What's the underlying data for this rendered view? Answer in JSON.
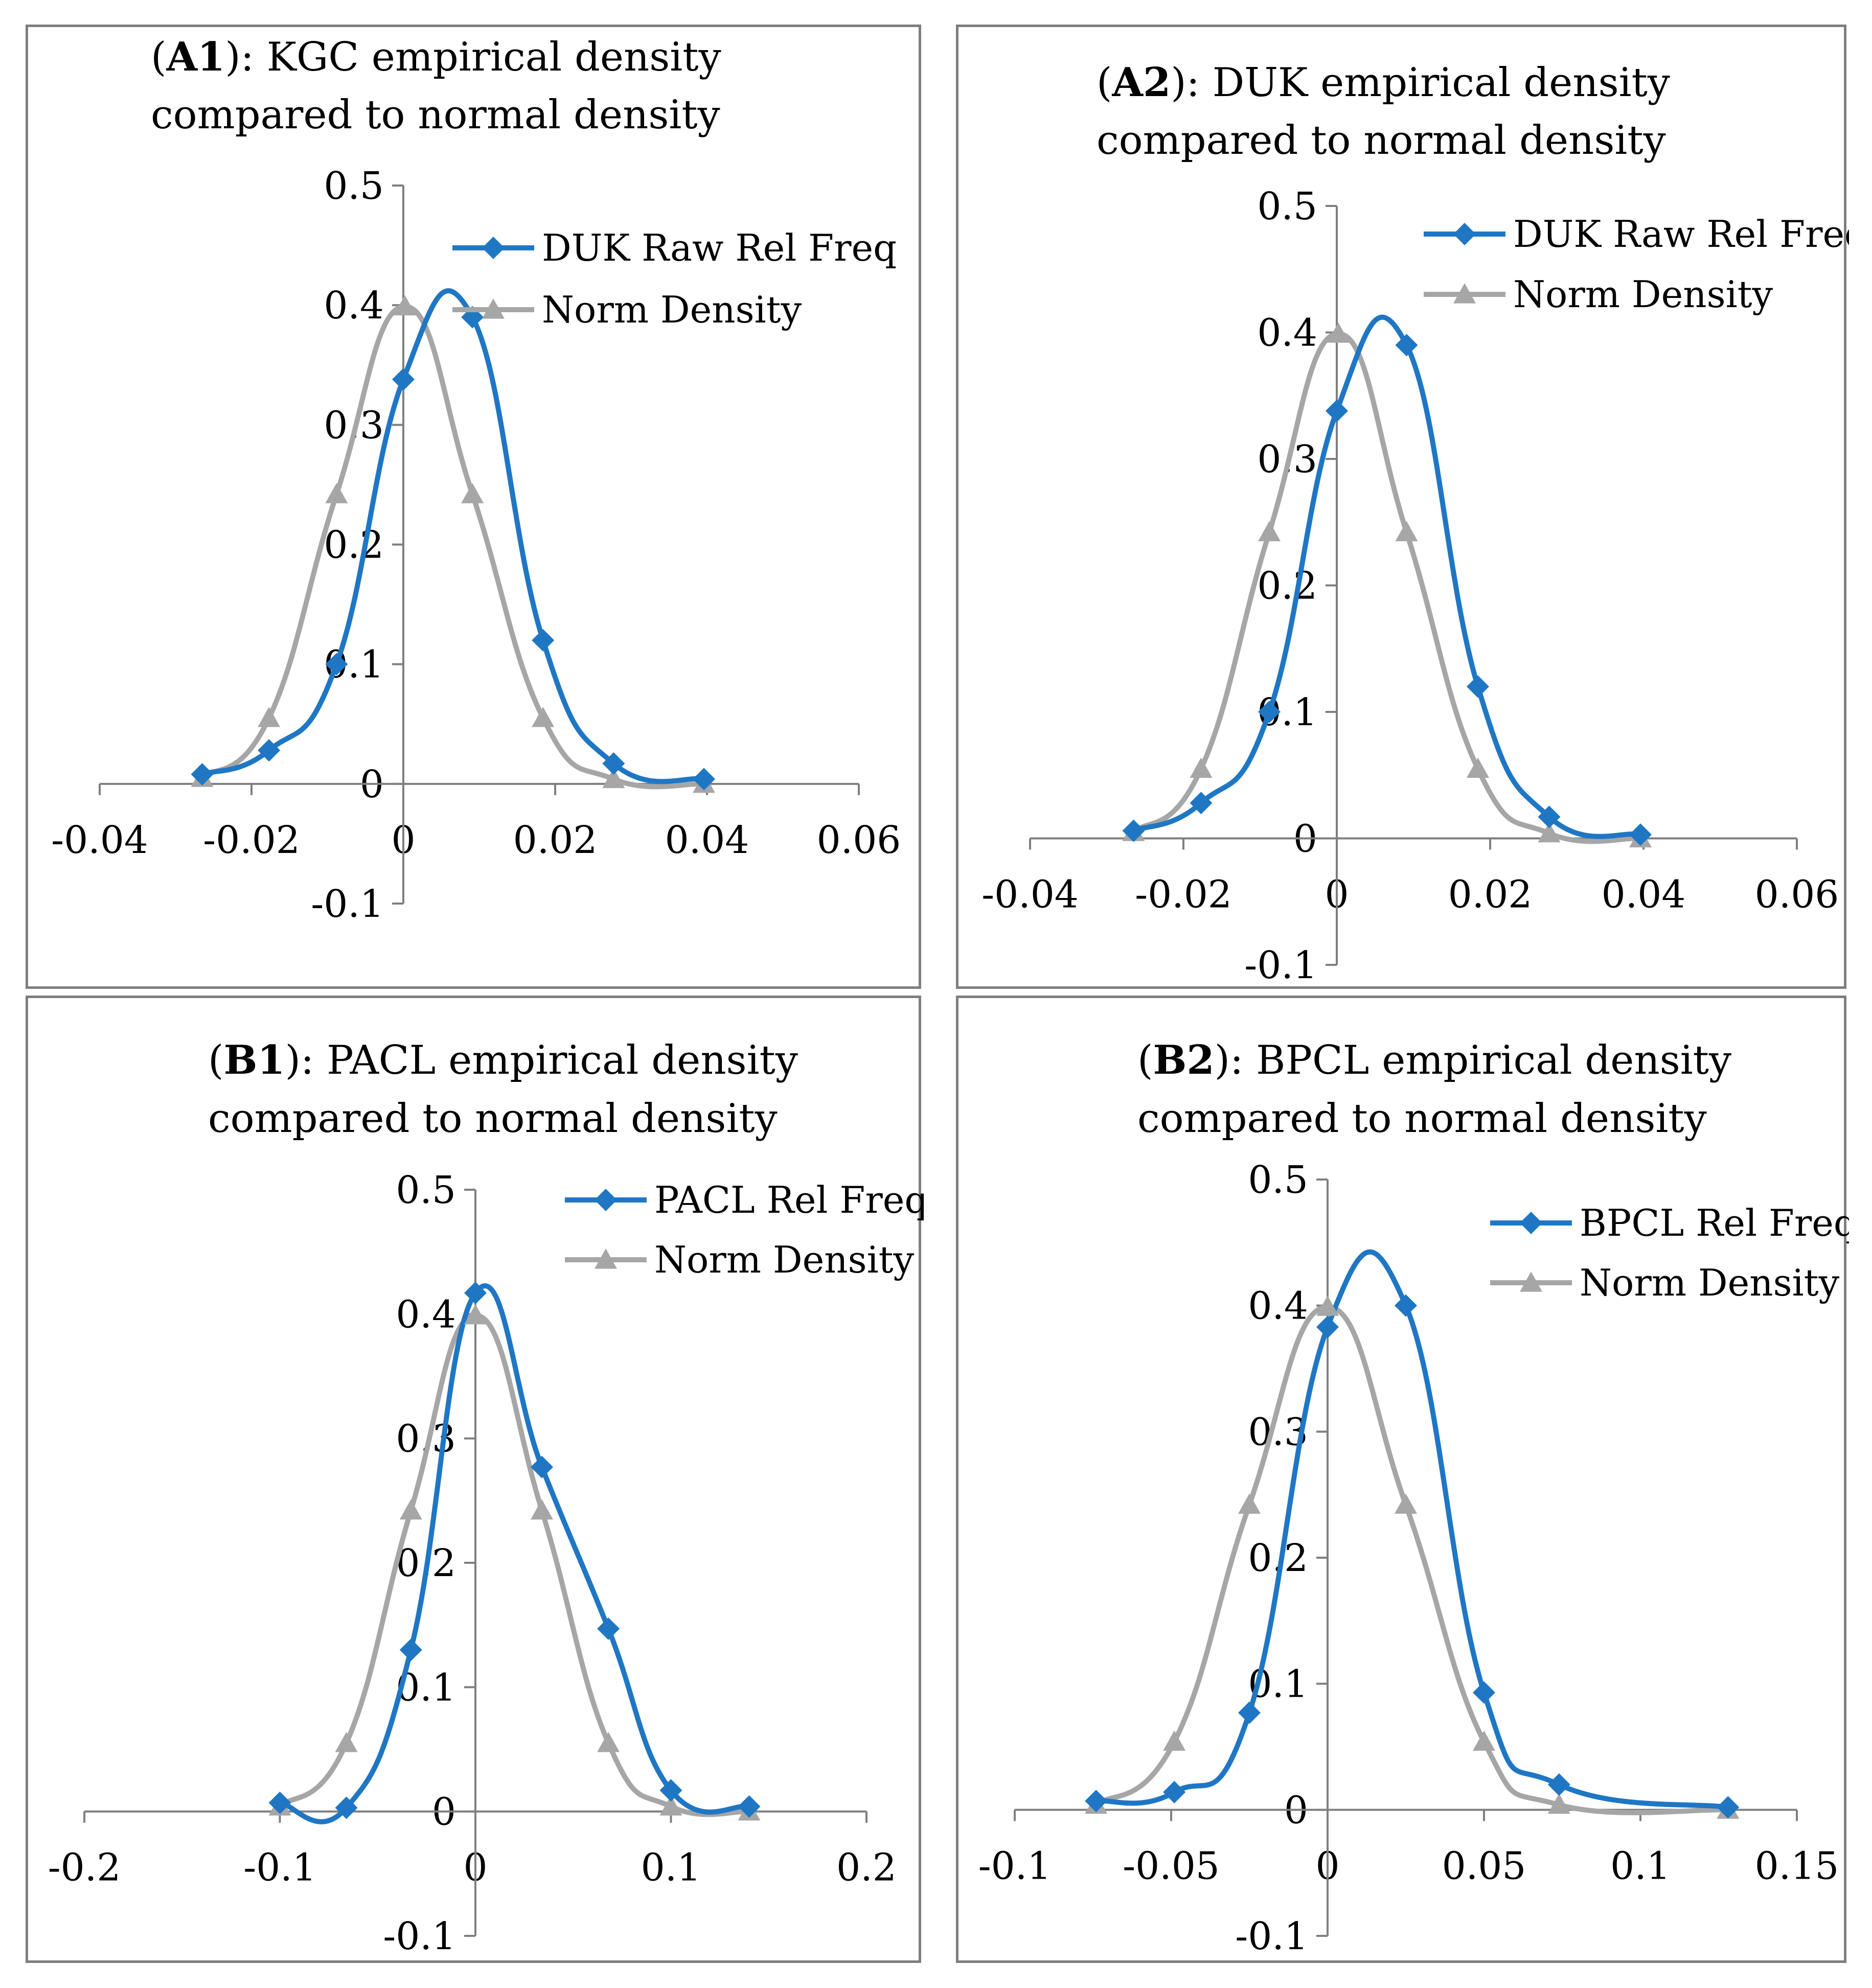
{
  "colors": {
    "empirical": "#1f77c4",
    "normal": "#a6a6a6",
    "axis": "#7f7f7f",
    "border": "#7f7f7f"
  },
  "chart_data": [
    {
      "type": "line",
      "panel": "A1",
      "title_bold": "A1",
      "title_line1": "): KGC empirical density",
      "title_line2": "compared to normal density",
      "xlim": [
        -0.04,
        0.06
      ],
      "ylim": [
        -0.1,
        0.5
      ],
      "x_ticks": [
        "-0.04",
        "-0.02",
        "0",
        "0.02",
        "0.04",
        "0.06"
      ],
      "y_ticks": [
        "0.5",
        "0.4",
        "0.3",
        "0.2",
        "0.1",
        "0",
        "-0.1"
      ],
      "legend_position": "top-right",
      "series": [
        {
          "name": "DUK Raw Rel Freq",
          "marker": "diamond",
          "x": [
            -0.0265,
            -0.0177,
            -0.0088,
            0,
            0.0091,
            0.0184,
            0.0277,
            0.0396
          ],
          "y": [
            0.008,
            0.028,
            0.1,
            0.338,
            0.39,
            0.12,
            0.017,
            0.004
          ]
        },
        {
          "name": "Norm Density",
          "marker": "triangle",
          "x": [
            -0.0265,
            -0.0177,
            -0.0088,
            0.0002,
            0.0091,
            0.0184,
            0.0277,
            0.0396
          ],
          "y": [
            0.005,
            0.055,
            0.242,
            0.399,
            0.242,
            0.055,
            0.004,
            0.0
          ]
        }
      ]
    },
    {
      "type": "line",
      "panel": "A2",
      "title_bold": "A2",
      "title_line1": "): DUK empirical density",
      "title_line2": "compared to normal density",
      "xlim": [
        -0.04,
        0.06
      ],
      "ylim": [
        -0.1,
        0.5
      ],
      "x_ticks": [
        "-0.04",
        "-0.02",
        "0",
        "0.02",
        "0.04",
        "0.06"
      ],
      "y_ticks": [
        "0.5",
        "0.4",
        "0.3",
        "0.2",
        "0.1",
        "0",
        "-0.1"
      ],
      "legend_position": "top-right",
      "series": [
        {
          "name": "DUK Raw Rel Freq",
          "marker": "diamond",
          "x": [
            -0.0265,
            -0.0177,
            -0.0088,
            0,
            0.0091,
            0.0184,
            0.0277,
            0.0396
          ],
          "y": [
            0.006,
            0.028,
            0.1,
            0.338,
            0.39,
            0.12,
            0.017,
            0.003
          ]
        },
        {
          "name": "Norm Density",
          "marker": "triangle",
          "x": [
            -0.0265,
            -0.0177,
            -0.0088,
            0.0002,
            0.0091,
            0.0184,
            0.0277,
            0.0396
          ],
          "y": [
            0.005,
            0.055,
            0.242,
            0.399,
            0.242,
            0.055,
            0.004,
            0.0
          ]
        }
      ]
    },
    {
      "type": "line",
      "panel": "B1",
      "title_bold": "B1",
      "title_line1": "): PACL empirical density",
      "title_line2": "compared to normal density",
      "xlim": [
        -0.2,
        0.2
      ],
      "ylim": [
        -0.1,
        0.5
      ],
      "x_ticks": [
        "-0.2",
        "-0.1",
        "0",
        "0.1",
        "0.2"
      ],
      "y_ticks": [
        "0.5",
        "0.4",
        "0.3",
        "0.2",
        "0.1",
        "0",
        "-0.1"
      ],
      "legend_position": "top-right",
      "series": [
        {
          "name": "PACL Rel Freq",
          "marker": "diamond",
          "x": [
            -0.1,
            -0.066,
            -0.033,
            0,
            0.034,
            0.068,
            0.1,
            0.14
          ],
          "y": [
            0.007,
            0.003,
            0.13,
            0.417,
            0.277,
            0.147,
            0.017,
            0.004
          ]
        },
        {
          "name": "Norm Density",
          "marker": "triangle",
          "x": [
            -0.1,
            -0.066,
            -0.033,
            0,
            0.034,
            0.068,
            0.1,
            0.14
          ],
          "y": [
            0.004,
            0.055,
            0.242,
            0.399,
            0.242,
            0.055,
            0.004,
            0.0
          ]
        }
      ]
    },
    {
      "type": "line",
      "panel": "B2",
      "title_bold": "B2",
      "title_line1": "): BPCL empirical density",
      "title_line2": "compared to normal density",
      "xlim": [
        -0.1,
        0.15
      ],
      "ylim": [
        -0.1,
        0.5
      ],
      "x_ticks": [
        "-0.1",
        "-0.05",
        "0",
        "0.05",
        "0.1",
        "0.15"
      ],
      "y_ticks": [
        "0.5",
        "0.4",
        "0.3",
        "0.2",
        "0.1",
        "0",
        "-0.1"
      ],
      "legend_position": "top-right",
      "series": [
        {
          "name": "BPCL Rel Freq",
          "marker": "diamond",
          "x": [
            -0.074,
            -0.049,
            -0.025,
            0,
            0.025,
            0.05,
            0.074,
            0.128
          ],
          "y": [
            0.007,
            0.014,
            0.077,
            0.383,
            0.4,
            0.093,
            0.02,
            0.002
          ]
        },
        {
          "name": "Norm Density",
          "marker": "triangle",
          "x": [
            -0.074,
            -0.049,
            -0.025,
            0,
            0.025,
            0.05,
            0.074,
            0.128
          ],
          "y": [
            0.004,
            0.054,
            0.242,
            0.399,
            0.242,
            0.054,
            0.004,
            0.0
          ]
        }
      ]
    }
  ]
}
